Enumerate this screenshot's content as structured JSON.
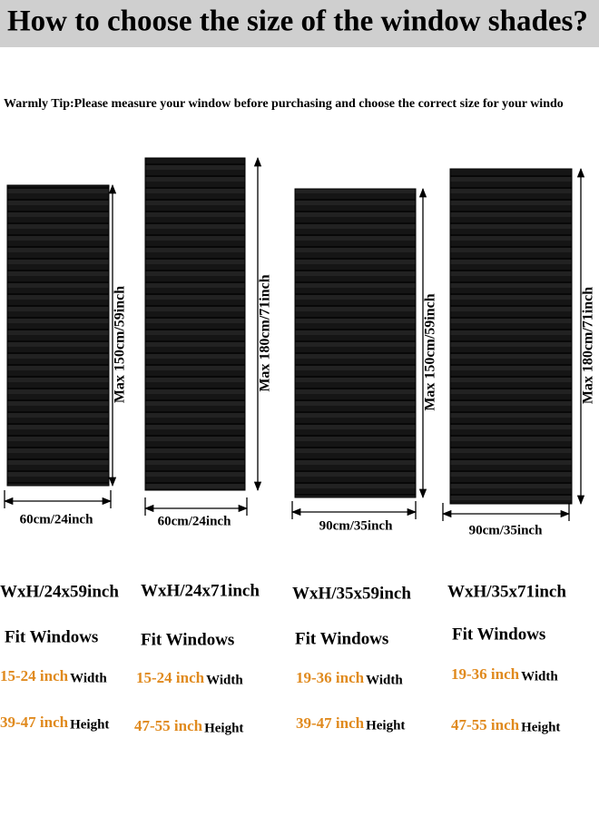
{
  "header": {
    "title": "How to choose the size of the window shades?"
  },
  "tip": "Warmly Tip:Please measure your window before purchasing and choose the correct size for your windo",
  "products": [
    {
      "height": "Max 150cm/59inch",
      "width": "60cm/24inch",
      "size": "WxH/24x59inch",
      "fit": "Fit Windows",
      "width_range": "15-24 inch",
      "width_label": "Width",
      "height_range": "39-47 inch",
      "height_label": "Height"
    },
    {
      "height": "Max 180cm/71inch",
      "width": "60cm/24inch",
      "size": "WxH/24x71inch",
      "fit": "Fit Windows",
      "width_range": "15-24 inch",
      "width_label": "Width",
      "height_range": "47-55 inch",
      "height_label": "Height"
    },
    {
      "height": "Max 150cm/59inch",
      "width": "90cm/35inch",
      "size": "WxH/35x59inch",
      "fit": "Fit Windows",
      "width_range": "19-36 inch",
      "width_label": "Width",
      "height_range": "39-47 inch",
      "height_label": "Height"
    },
    {
      "height": "Max 180cm/71inch",
      "width": "90cm/35inch",
      "size": "WxH/35x71inch",
      "fit": "Fit Windows",
      "width_range": "19-36 inch",
      "width_label": "Width",
      "height_range": "47-55 inch",
      "height_label": "Height"
    }
  ]
}
